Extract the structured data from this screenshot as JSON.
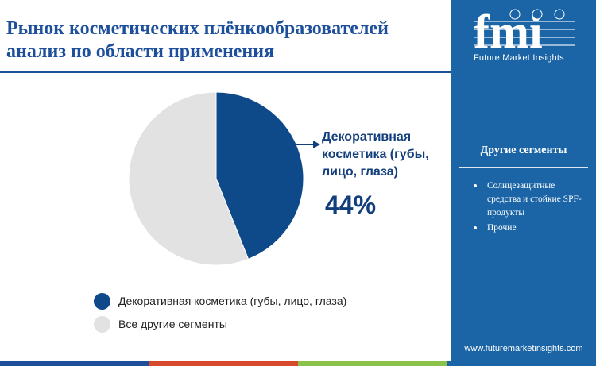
{
  "header": {
    "title_line1": "Рынок косметических плёнкообразователей",
    "title_line2": "анализ по области применения"
  },
  "brand": {
    "logo_text": "fmi",
    "name": "Future Market Insights",
    "website": "www.futuremarketinsights.com"
  },
  "sidebar": {
    "heading": "Другие сегменты",
    "items": [
      "Солнцезащитные средства и стойкие SPF-продукты",
      "Прочие"
    ]
  },
  "callout": {
    "label": "Декоративная косметика (губы, лицо, глаза)",
    "value_text": "44%"
  },
  "chart_data": {
    "type": "pie",
    "title": "Рынок косметических плёнкообразователей анализ по области применения",
    "slices": [
      {
        "name": "Декоративная косметика (губы, лицо, глаза)",
        "value": 44,
        "color": "#0e4a8a"
      },
      {
        "name": "Все другие сегменты",
        "value": 56,
        "color": "#e2e2e2"
      }
    ],
    "legend": [
      "Декоративная косметика (губы, лицо, глаза)",
      "Все другие сегменты"
    ],
    "legend_position": "bottom"
  },
  "colors": {
    "title": "#1d4f9b",
    "sidebar": "#1b65a6",
    "accent": "#0e4a8a",
    "stripe": [
      "#1d4f9b",
      "#d64a2b",
      "#8bc34a",
      "#1b65a6"
    ]
  }
}
